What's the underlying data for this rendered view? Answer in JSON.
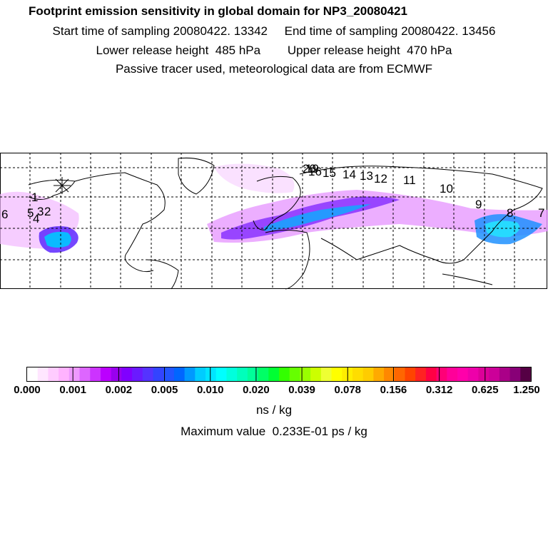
{
  "header": {
    "title": "Footprint emission sensitivity in global domain for NP3_20080421",
    "start_time": "Start time of sampling 20080422. 13342",
    "end_time": "End time of sampling 20080422. 13456",
    "lower_height": "Lower release height  485 hPa",
    "upper_height": "Upper release height  470 hPa",
    "tracer_note": "Passive tracer used, meteorological data are from ECMWF"
  },
  "map": {
    "trajectory_labels": [
      "1",
      "2",
      "3",
      "4",
      "5",
      "6",
      "7",
      "8",
      "9",
      "10",
      "11",
      "12",
      "13",
      "14",
      "15",
      "16",
      "19",
      "20"
    ]
  },
  "colorbar": {
    "ticks": [
      "0.000",
      "0.001",
      "0.002",
      "0.005",
      "0.010",
      "0.020",
      "0.039",
      "0.078",
      "0.156",
      "0.312",
      "0.625",
      "1.250"
    ],
    "colors": [
      "#ffffff",
      "#ffe6ff",
      "#ffccff",
      "#ffb3ff",
      "#ee99ff",
      "#dd66ff",
      "#cc33ff",
      "#bb00ff",
      "#9900ee",
      "#8000ff",
      "#6a1aff",
      "#5533ff",
      "#3344ff",
      "#2255ff",
      "#0066ff",
      "#0099ff",
      "#00ccff",
      "#00e5ff",
      "#00ffff",
      "#00ffdd",
      "#00ffbb",
      "#00ff99",
      "#00ff66",
      "#00ff33",
      "#33ff00",
      "#66ff00",
      "#99ff00",
      "#ccff00",
      "#eeff33",
      "#ffff00",
      "#ffee00",
      "#ffdd00",
      "#ffcc00",
      "#ffaa00",
      "#ff8800",
      "#ff6600",
      "#ff4400",
      "#ff2222",
      "#ff0044",
      "#ff0077",
      "#ff0099",
      "#ff00aa",
      "#ee00aa",
      "#dd0099",
      "#cc0099",
      "#aa0088",
      "#880077",
      "#550044"
    ],
    "unit": "ns / kg"
  },
  "footer": {
    "max_value": "Maximum value  0.233E-01 ps / kg"
  }
}
